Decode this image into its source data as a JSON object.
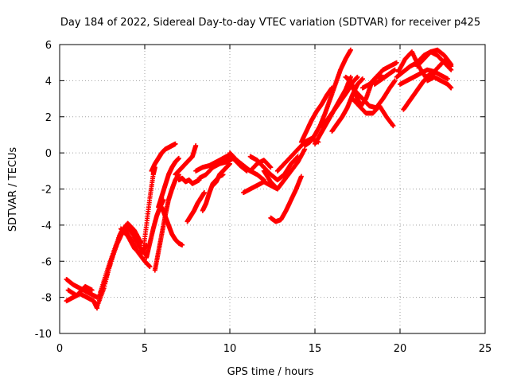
{
  "chart_data": {
    "type": "scatter",
    "title": "Day 184 of 2022, Sidereal Day-to-day VTEC variation (SDTVAR) for receiver p425",
    "xlabel": "GPS time / hours",
    "ylabel": "SDTVAR / TECUs",
    "xlim": [
      0,
      25
    ],
    "ylim": [
      -10,
      6
    ],
    "xticks": [
      "0",
      "5",
      "10",
      "15",
      "20",
      "25"
    ],
    "yticks": [
      "-10",
      "-8",
      "-6",
      "-4",
      "-2",
      "0",
      "2",
      "4",
      "6"
    ],
    "grid": true,
    "marker": "+",
    "color": "#ff0000",
    "series": [
      {
        "x": [
          0.4,
          0.8,
          1.2,
          1.6,
          2.0,
          2.2
        ],
        "y": [
          -7.0,
          -7.3,
          -7.5,
          -7.7,
          -7.9,
          -8.0
        ]
      },
      {
        "x": [
          0.4,
          0.8,
          1.2,
          1.6,
          2.0,
          2.2
        ],
        "y": [
          -8.2,
          -8.0,
          -7.8,
          -8.0,
          -8.2,
          -8.6
        ]
      },
      {
        "x": [
          0.5,
          1.0,
          1.5,
          1.9
        ],
        "y": [
          -7.6,
          -7.9,
          -7.4,
          -7.6
        ]
      },
      {
        "x": [
          2.2,
          2.6,
          3.0,
          3.4,
          3.8,
          4.2,
          4.6,
          5.0,
          5.3
        ],
        "y": [
          -8.5,
          -7.5,
          -6.0,
          -5.0,
          -4.2,
          -4.8,
          -5.5,
          -6.0,
          -6.3
        ]
      },
      {
        "x": [
          2.3,
          2.7,
          3.1,
          3.5,
          3.9,
          4.3,
          4.7,
          5.0
        ],
        "y": [
          -8.0,
          -7.0,
          -5.8,
          -4.6,
          -4.0,
          -4.5,
          -5.2,
          -5.6
        ]
      },
      {
        "x": [
          2.4,
          2.8,
          3.2,
          3.6,
          4.0,
          4.4,
          4.8
        ],
        "y": [
          -7.7,
          -6.5,
          -5.4,
          -4.4,
          -3.9,
          -4.3,
          -5.0
        ]
      },
      {
        "x": [
          3.6,
          4.0,
          4.4,
          4.8,
          5.1
        ],
        "y": [
          -4.2,
          -4.6,
          -5.3,
          -5.6,
          -5.1
        ]
      },
      {
        "x": [
          4.9,
          5.1,
          5.3,
          5.5,
          5.6
        ],
        "y": [
          -5.5,
          -4.0,
          -2.5,
          -1.2,
          -0.8
        ]
      },
      {
        "x": [
          5.1,
          5.3,
          5.5,
          5.7,
          5.9,
          6.1
        ],
        "y": [
          -5.8,
          -5.0,
          -4.2,
          -3.5,
          -3.0,
          -2.6
        ]
      },
      {
        "x": [
          5.4,
          5.6,
          5.8,
          6.0,
          6.2,
          6.4,
          6.6,
          6.8
        ],
        "y": [
          -1.0,
          -0.6,
          -0.3,
          0.0,
          0.2,
          0.3,
          0.4,
          0.5
        ]
      },
      {
        "x": [
          5.6,
          5.8,
          6.0,
          6.2,
          6.4,
          6.6,
          6.8,
          7.0
        ],
        "y": [
          -6.5,
          -5.5,
          -4.5,
          -3.5,
          -2.6,
          -2.0,
          -1.5,
          -1.2
        ]
      },
      {
        "x": [
          5.8,
          6.0,
          6.2,
          6.4,
          6.6,
          6.8,
          7.0
        ],
        "y": [
          -3.0,
          -2.4,
          -1.8,
          -1.2,
          -0.8,
          -0.5,
          -0.3
        ]
      },
      {
        "x": [
          6.0,
          6.2,
          6.4,
          6.6,
          6.8,
          7.0,
          7.2
        ],
        "y": [
          -3.0,
          -3.5,
          -4.0,
          -4.5,
          -4.8,
          -5.0,
          -5.1
        ]
      },
      {
        "x": [
          6.8,
          7.0,
          7.2,
          7.4,
          7.6,
          7.8,
          8.0
        ],
        "y": [
          -1.2,
          -1.0,
          -0.8,
          -0.6,
          -0.4,
          -0.2,
          0.4
        ]
      },
      {
        "x": [
          7.0,
          7.2,
          7.4,
          7.6,
          7.8,
          8.0,
          8.2
        ],
        "y": [
          -1.5,
          -1.4,
          -1.6,
          -1.5,
          -1.7,
          -1.6,
          -1.5
        ]
      },
      {
        "x": [
          7.5,
          7.7,
          7.9,
          8.1,
          8.3,
          8.5
        ],
        "y": [
          -3.8,
          -3.5,
          -3.2,
          -2.8,
          -2.5,
          -2.2
        ]
      },
      {
        "x": [
          8.0,
          8.4,
          8.8,
          9.2,
          9.6,
          10.0,
          10.4
        ],
        "y": [
          -1.0,
          -0.8,
          -0.7,
          -0.5,
          -0.3,
          -0.1,
          -0.5
        ]
      },
      {
        "x": [
          8.2,
          8.6,
          9.0,
          9.4,
          9.8,
          10.2,
          10.6,
          11.0
        ],
        "y": [
          -1.4,
          -1.2,
          -0.8,
          -0.6,
          -0.5,
          -0.3,
          -0.7,
          -1.0
        ]
      },
      {
        "x": [
          8.4,
          8.6,
          8.8,
          9.0,
          9.2,
          9.4,
          9.6
        ],
        "y": [
          -3.2,
          -2.8,
          -2.2,
          -1.7,
          -1.5,
          -1.3,
          -1.2
        ]
      },
      {
        "x": [
          9.0,
          9.2,
          9.4,
          9.6,
          9.8,
          10.0
        ],
        "y": [
          -1.8,
          -1.6,
          -1.2,
          -1.0,
          -0.8,
          -0.6
        ]
      },
      {
        "x": [
          9.6,
          10.0,
          10.4,
          10.8,
          11.2,
          11.6,
          12.0
        ],
        "y": [
          -0.4,
          -0.2,
          -0.4,
          -0.8,
          -1.0,
          -1.2,
          -1.5
        ]
      },
      {
        "x": [
          10.0,
          10.4,
          10.8,
          11.2,
          11.6,
          12.0,
          12.4
        ],
        "y": [
          0.0,
          -0.4,
          -0.7,
          -1.0,
          -0.6,
          -0.4,
          -0.8
        ]
      },
      {
        "x": [
          10.8,
          11.2,
          11.6,
          12.0,
          12.4,
          12.8
        ],
        "y": [
          -2.2,
          -2.0,
          -1.8,
          -1.6,
          -1.8,
          -2.0
        ]
      },
      {
        "x": [
          11.2,
          11.6,
          12.0,
          12.4,
          12.8,
          13.2,
          13.6,
          14.0
        ],
        "y": [
          -0.2,
          -0.4,
          -0.8,
          -1.2,
          -1.5,
          -1.2,
          -0.6,
          -0.2
        ]
      },
      {
        "x": [
          12.0,
          12.4,
          12.8,
          13.2,
          13.6,
          14.0,
          14.4
        ],
        "y": [
          -1.0,
          -1.6,
          -2.0,
          -1.5,
          -1.0,
          -0.5,
          0.2
        ]
      },
      {
        "x": [
          12.4,
          12.7,
          13.0,
          13.3,
          13.6,
          13.9,
          14.2
        ],
        "y": [
          -3.6,
          -3.8,
          -3.7,
          -3.2,
          -2.6,
          -2.0,
          -1.3
        ]
      },
      {
        "x": [
          12.8,
          13.2,
          13.6,
          14.0,
          14.4,
          14.8,
          15.2
        ],
        "y": [
          -1.0,
          -0.6,
          -0.2,
          0.2,
          0.6,
          0.8,
          0.6
        ]
      },
      {
        "x": [
          14.2,
          14.5,
          14.8,
          15.1,
          15.4,
          15.7,
          16.0
        ],
        "y": [
          0.6,
          1.2,
          1.8,
          2.3,
          2.7,
          3.2,
          3.6
        ]
      },
      {
        "x": [
          14.4,
          14.7,
          15.0,
          15.3,
          15.6,
          15.9,
          16.2,
          16.5,
          16.8,
          17.1
        ],
        "y": [
          0.4,
          0.6,
          1.0,
          1.5,
          2.2,
          3.0,
          3.8,
          4.6,
          5.2,
          5.7
        ]
      },
      {
        "x": [
          15.0,
          15.3,
          15.6,
          15.9,
          16.2,
          16.5,
          16.8,
          17.1
        ],
        "y": [
          0.5,
          1.0,
          1.5,
          2.0,
          2.5,
          3.0,
          3.5,
          4.2
        ]
      },
      {
        "x": [
          15.4,
          15.7,
          16.0,
          16.3,
          16.6,
          16.9,
          17.2,
          17.5
        ],
        "y": [
          1.5,
          1.8,
          2.2,
          2.6,
          3.0,
          3.4,
          3.9,
          4.2
        ]
      },
      {
        "x": [
          16.0,
          16.3,
          16.6,
          16.9,
          17.2,
          17.5,
          17.8
        ],
        "y": [
          1.2,
          1.6,
          2.0,
          2.5,
          3.2,
          3.8,
          4.1
        ]
      },
      {
        "x": [
          16.8,
          17.1,
          17.4,
          17.7,
          18.0,
          18.3,
          18.6,
          18.9
        ],
        "y": [
          4.2,
          4.0,
          3.2,
          2.6,
          3.0,
          3.8,
          4.2,
          4.3
        ]
      },
      {
        "x": [
          17.0,
          17.4,
          17.8,
          18.2,
          18.6,
          19.0,
          19.4,
          19.7
        ],
        "y": [
          3.8,
          3.4,
          3.0,
          2.6,
          2.5,
          3.0,
          3.6,
          4.0
        ]
      },
      {
        "x": [
          17.2,
          17.6,
          18.0,
          18.4,
          18.8,
          19.2,
          19.6
        ],
        "y": [
          3.0,
          2.6,
          2.2,
          2.2,
          2.6,
          2.0,
          1.5
        ]
      },
      {
        "x": [
          17.8,
          18.2,
          18.6,
          19.0,
          19.4,
          19.8
        ],
        "y": [
          3.6,
          3.8,
          4.2,
          4.6,
          4.8,
          5.0
        ]
      },
      {
        "x": [
          18.5,
          18.8,
          19.1,
          19.4,
          19.7
        ],
        "y": [
          3.8,
          4.0,
          4.2,
          4.4,
          4.6
        ]
      },
      {
        "x": [
          19.8,
          20.2,
          20.6,
          21.0,
          21.4,
          21.8,
          22.2,
          22.6,
          23.0
        ],
        "y": [
          4.2,
          4.5,
          4.8,
          5.0,
          5.4,
          5.6,
          5.4,
          5.0,
          4.6
        ]
      },
      {
        "x": [
          19.9,
          20.3,
          20.7,
          21.1,
          21.5,
          21.9,
          22.3,
          22.7,
          23.0
        ],
        "y": [
          4.5,
          5.2,
          5.6,
          4.8,
          4.2,
          4.4,
          4.8,
          5.2,
          4.8
        ]
      },
      {
        "x": [
          20.0,
          20.4,
          20.8,
          21.2,
          21.6,
          22.0,
          22.4,
          22.8
        ],
        "y": [
          3.8,
          4.0,
          4.2,
          4.4,
          4.6,
          4.5,
          4.3,
          4.1
        ]
      },
      {
        "x": [
          20.2,
          20.5,
          20.8,
          21.1,
          21.4,
          21.7,
          22.0
        ],
        "y": [
          2.4,
          2.8,
          3.2,
          3.6,
          4.0,
          4.2,
          4.4
        ]
      },
      {
        "x": [
          21.0,
          21.4,
          21.8,
          22.2,
          22.6,
          23.0
        ],
        "y": [
          4.8,
          5.2,
          5.6,
          5.7,
          5.4,
          4.9
        ]
      },
      {
        "x": [
          21.6,
          22.0,
          22.4,
          22.8,
          23.0
        ],
        "y": [
          4.0,
          4.2,
          4.0,
          3.8,
          3.6
        ]
      }
    ]
  }
}
